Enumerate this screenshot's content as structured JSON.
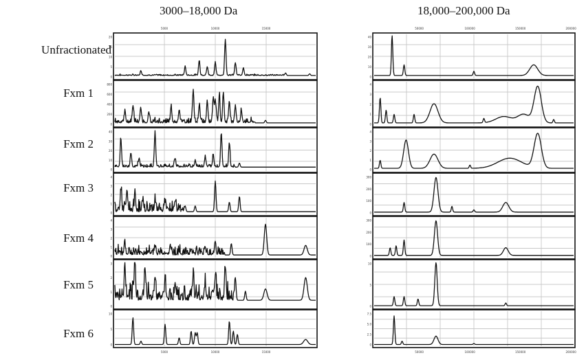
{
  "chart_data": {
    "type": "line",
    "columns": [
      {
        "title": "3000–18,000 Da",
        "x_tick_labels": [
          "5000",
          "10000",
          "15000"
        ]
      },
      {
        "title": "18,000–200,000 Da",
        "x_tick_labels": [
          "50000",
          "100000",
          "150000",
          "200000"
        ]
      }
    ],
    "rows": [
      "Unfractionated",
      "Fxm 1",
      "Fxm 2",
      "Fxm 3",
      "Fxm 4",
      "Fxm 5",
      "Fxm 6"
    ],
    "y_tick_labels": [
      [
        [
          "20",
          "15",
          "10",
          "5",
          "0"
        ],
        [
          "40",
          "30",
          "20",
          "10",
          "0"
        ]
      ],
      [
        [
          "800",
          "600",
          "400",
          "200",
          "0"
        ],
        [
          "4",
          "3",
          "2",
          "1",
          "0"
        ]
      ],
      [
        [
          "40",
          "30",
          "20",
          "10",
          "0"
        ],
        [
          "4",
          "3",
          "2",
          "1",
          "0"
        ]
      ],
      [
        [
          "4",
          "3",
          "2",
          "1",
          "0"
        ],
        [
          "300",
          "200",
          "100",
          "0"
        ]
      ],
      [
        [
          "4",
          "3",
          "2",
          "1",
          "0"
        ],
        [
          "300",
          "200",
          "100",
          "0"
        ]
      ],
      [
        [
          "3",
          "2",
          "1",
          "0"
        ],
        [
          "10",
          "5",
          "0"
        ]
      ],
      [
        [
          "10",
          "5",
          "0"
        ],
        [
          "7.5",
          "5.0",
          "2.5",
          "0"
        ]
      ]
    ],
    "spectra": [
      [
        {
          "baseline": 0.05,
          "noise": 0.04,
          "noise_end": 0.85,
          "peaks": [
            [
              0.13,
              0.1
            ],
            [
              0.35,
              0.2
            ],
            [
              0.42,
              0.35
            ],
            [
              0.46,
              0.2
            ],
            [
              0.5,
              0.3
            ],
            [
              0.55,
              0.85
            ],
            [
              0.6,
              0.3
            ],
            [
              0.64,
              0.18
            ],
            [
              0.85,
              0.06
            ],
            [
              0.97,
              0.04
            ]
          ]
        },
        {
          "baseline": 0.05,
          "peaks": [
            [
              0.09,
              0.95
            ],
            [
              0.15,
              0.25
            ],
            [
              0.5,
              0.1
            ],
            [
              0.8,
              0.25,
              0.02
            ]
          ]
        }
      ],
      [
        {
          "baseline": 0.05,
          "noise": 0.15,
          "noise_end": 0.7,
          "peaks": [
            [
              0.05,
              0.25
            ],
            [
              0.09,
              0.4
            ],
            [
              0.13,
              0.3
            ],
            [
              0.17,
              0.2
            ],
            [
              0.28,
              0.35
            ],
            [
              0.32,
              0.3
            ],
            [
              0.39,
              0.75
            ],
            [
              0.42,
              0.4
            ],
            [
              0.46,
              0.5
            ],
            [
              0.49,
              0.6
            ],
            [
              0.5,
              0.55
            ],
            [
              0.52,
              0.65
            ],
            [
              0.54,
              0.7
            ],
            [
              0.57,
              0.5
            ],
            [
              0.6,
              0.4
            ],
            [
              0.63,
              0.25
            ],
            [
              0.75,
              0.06
            ]
          ]
        },
        {
          "baseline": 0.05,
          "peaks": [
            [
              0.03,
              0.6
            ],
            [
              0.06,
              0.3
            ],
            [
              0.1,
              0.2
            ],
            [
              0.2,
              0.2
            ],
            [
              0.3,
              0.45,
              0.02
            ],
            [
              0.55,
              0.1
            ],
            [
              0.65,
              0.15,
              0.04
            ],
            [
              0.75,
              0.2,
              0.03
            ],
            [
              0.82,
              0.85,
              0.018
            ],
            [
              0.9,
              0.08
            ]
          ]
        }
      ],
      [
        {
          "baseline": 0.08,
          "noise": 0.1,
          "noise_end": 0.6,
          "peaks": [
            [
              0.03,
              0.7
            ],
            [
              0.08,
              0.35
            ],
            [
              0.12,
              0.2
            ],
            [
              0.2,
              0.85
            ],
            [
              0.3,
              0.2
            ],
            [
              0.4,
              0.15
            ],
            [
              0.45,
              0.25
            ],
            [
              0.49,
              0.3
            ],
            [
              0.53,
              0.85
            ],
            [
              0.57,
              0.6
            ],
            [
              0.62,
              0.1
            ]
          ]
        },
        {
          "baseline": 0.05,
          "peaks": [
            [
              0.03,
              0.2
            ],
            [
              0.16,
              0.7,
              0.012
            ],
            [
              0.3,
              0.35,
              0.02
            ],
            [
              0.48,
              0.08
            ],
            [
              0.68,
              0.25,
              0.06
            ],
            [
              0.82,
              0.85,
              0.018
            ]
          ]
        }
      ],
      [
        {
          "baseline": 0.05,
          "noise": 0.35,
          "noise_end": 0.35,
          "peaks": [
            [
              0.03,
              0.55
            ],
            [
              0.06,
              0.45
            ],
            [
              0.1,
              0.35
            ],
            [
              0.14,
              0.3
            ],
            [
              0.2,
              0.25
            ],
            [
              0.25,
              0.2
            ],
            [
              0.3,
              0.25
            ],
            [
              0.35,
              0.15
            ],
            [
              0.4,
              0.15
            ],
            [
              0.5,
              0.8
            ],
            [
              0.57,
              0.25
            ],
            [
              0.62,
              0.4
            ]
          ]
        },
        {
          "baseline": 0.04,
          "peaks": [
            [
              0.15,
              0.25
            ],
            [
              0.31,
              0.9,
              0.01
            ],
            [
              0.39,
              0.15
            ],
            [
              0.5,
              0.06
            ],
            [
              0.66,
              0.25,
              0.015
            ]
          ]
        }
      ],
      [
        {
          "baseline": 0.05,
          "noise": 0.3,
          "noise_end": 0.55,
          "peaks": [
            [
              0.05,
              0.25
            ],
            [
              0.2,
              0.2
            ],
            [
              0.28,
              0.15
            ],
            [
              0.38,
              0.15
            ],
            [
              0.45,
              0.15
            ],
            [
              0.5,
              0.3
            ],
            [
              0.58,
              0.3
            ],
            [
              0.75,
              0.8,
              0.006
            ],
            [
              0.95,
              0.25,
              0.008
            ]
          ]
        },
        {
          "baseline": 0.04,
          "peaks": [
            [
              0.08,
              0.2
            ],
            [
              0.11,
              0.25
            ],
            [
              0.15,
              0.4
            ],
            [
              0.31,
              0.9,
              0.008
            ],
            [
              0.66,
              0.2,
              0.012
            ]
          ]
        }
      ],
      [
        {
          "baseline": 0.15,
          "noise": 0.45,
          "noise_end": 0.6,
          "peaks": [
            [
              0.05,
              0.7
            ],
            [
              0.1,
              0.75
            ],
            [
              0.15,
              0.65
            ],
            [
              0.2,
              0.5
            ],
            [
              0.25,
              0.45
            ],
            [
              0.3,
              0.35
            ],
            [
              0.39,
              0.4
            ],
            [
              0.45,
              0.35
            ],
            [
              0.5,
              0.5
            ],
            [
              0.55,
              0.7
            ],
            [
              0.6,
              0.5
            ],
            [
              0.65,
              0.2
            ],
            [
              0.75,
              0.25,
              0.008
            ],
            [
              0.95,
              0.5,
              0.008
            ]
          ]
        },
        {
          "baseline": 0.03,
          "peaks": [
            [
              0.1,
              0.2
            ],
            [
              0.15,
              0.2
            ],
            [
              0.22,
              0.15
            ],
            [
              0.31,
              0.95,
              0.006
            ],
            [
              0.66,
              0.06
            ]
          ]
        }
      ],
      [
        {
          "baseline": 0.03,
          "peaks": [
            [
              0.09,
              0.8
            ],
            [
              0.13,
              0.1
            ],
            [
              0.25,
              0.6
            ],
            [
              0.32,
              0.2
            ],
            [
              0.38,
              0.4
            ],
            [
              0.4,
              0.35
            ],
            [
              0.41,
              0.35
            ],
            [
              0.57,
              0.7
            ],
            [
              0.59,
              0.4
            ],
            [
              0.61,
              0.3
            ],
            [
              0.95,
              0.15,
              0.01
            ]
          ]
        },
        {
          "baseline": 0.03,
          "peaks": [
            [
              0.1,
              0.85
            ],
            [
              0.14,
              0.1
            ],
            [
              0.31,
              0.25,
              0.01
            ],
            [
              0.5,
              0.03
            ]
          ]
        }
      ]
    ]
  }
}
